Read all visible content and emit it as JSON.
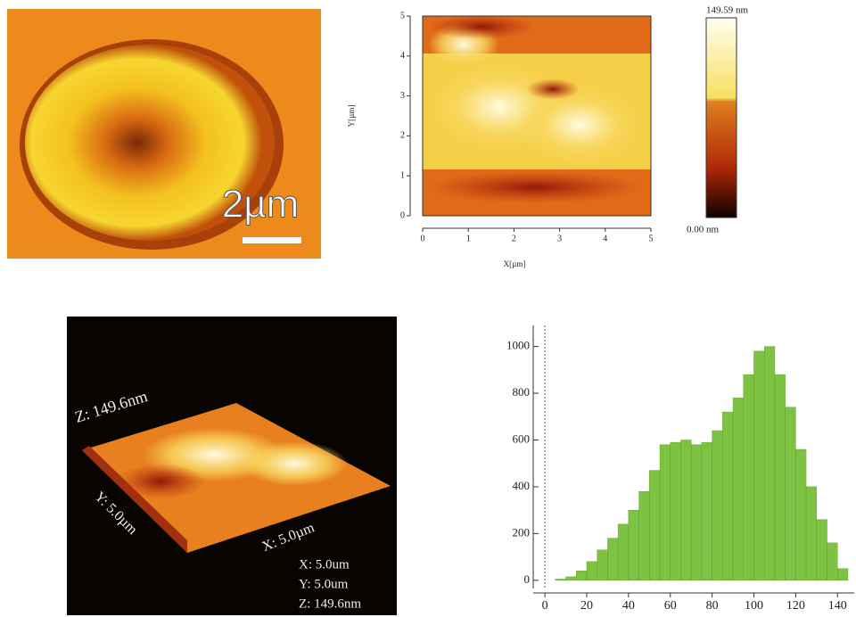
{
  "panels": {
    "scale_label": "2µm",
    "surface_labels": [
      "Z: 149.6nm",
      "Y: 5.0µm",
      "X: 5.0µm"
    ],
    "info_labels": [
      "X: 5.0um",
      "Y: 5.0um",
      "Z: 149.6nm"
    ]
  },
  "chart_data": [
    {
      "type": "heatmap",
      "x_label": "X[µm]",
      "y_label": "Y[µm]",
      "xlim": [
        0,
        5
      ],
      "ylim": [
        0,
        5
      ],
      "xticks": [
        0,
        1,
        2,
        3,
        4,
        5
      ],
      "yticks": [
        0,
        1,
        2,
        3,
        4,
        5
      ],
      "colorbar_labels": [
        "149.59 nm",
        "0.00 nm"
      ]
    },
    {
      "type": "histogram",
      "color": "#7dc242",
      "bins": [
        0,
        5,
        10,
        15,
        20,
        25,
        30,
        35,
        40,
        45,
        50,
        55,
        60,
        65,
        70,
        75,
        80,
        85,
        90,
        95,
        100,
        105,
        110,
        115,
        120,
        125,
        130,
        135,
        140,
        145
      ],
      "counts": [
        0,
        5,
        15,
        40,
        80,
        130,
        180,
        240,
        300,
        380,
        470,
        580,
        590,
        600,
        580,
        590,
        640,
        720,
        780,
        880,
        980,
        1000,
        880,
        740,
        560,
        400,
        260,
        160,
        50
      ],
      "xlim": [
        -9,
        148
      ],
      "ylim": [
        -35,
        1090
      ],
      "xticks": [
        0,
        20,
        40,
        60,
        80,
        100,
        120,
        140
      ],
      "yticks": [
        0,
        200,
        400,
        600,
        800,
        1000
      ]
    }
  ]
}
